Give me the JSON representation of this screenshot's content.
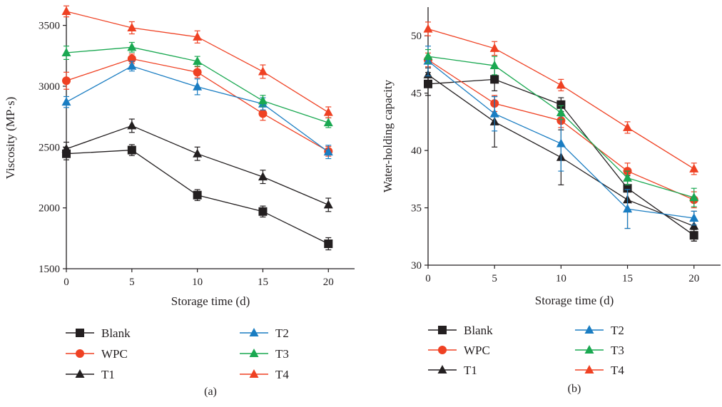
{
  "chart_data": [
    {
      "type": "line",
      "panel_label": "(a)",
      "xlabel": "Storage time (d)",
      "ylabel": "Viscosity (MP·s)",
      "x": [
        0,
        5,
        10,
        15,
        20
      ],
      "xticks": [
        0,
        5,
        10,
        15,
        20
      ],
      "xlim": [
        0,
        22
      ],
      "ylim": [
        1500,
        3650
      ],
      "yticks": [
        1500,
        2000,
        2500,
        3000,
        3500
      ],
      "grid": false,
      "legend_position": "bottom",
      "series": [
        {
          "name": "Blank",
          "color": "#231f20",
          "marker": "square",
          "values": [
            2445,
            2475,
            2105,
            1970,
            1705
          ],
          "errors": [
            50,
            45,
            45,
            45,
            50
          ]
        },
        {
          "name": "WPC",
          "color": "#ef4123",
          "marker": "circle",
          "values": [
            3045,
            3225,
            3115,
            2775,
            2465
          ],
          "errors": [
            70,
            40,
            45,
            55,
            40
          ]
        },
        {
          "name": "T1",
          "color": "#231f20",
          "marker": "triangle",
          "values": [
            2485,
            2675,
            2445,
            2255,
            2025
          ],
          "errors": [
            55,
            55,
            55,
            55,
            55
          ]
        },
        {
          "name": "T2",
          "color": "#1a7dc2",
          "marker": "triangle",
          "values": [
            2870,
            3165,
            2995,
            2855,
            2460
          ],
          "errors": [
            45,
            40,
            65,
            50,
            55
          ]
        },
        {
          "name": "T3",
          "color": "#1aa851",
          "marker": "triangle",
          "values": [
            3275,
            3320,
            3205,
            2880,
            2700
          ],
          "errors": [
            55,
            40,
            40,
            45,
            40
          ]
        },
        {
          "name": "T4",
          "color": "#ef4123",
          "marker": "triangle",
          "values": [
            3615,
            3480,
            3405,
            3120,
            2785
          ],
          "errors": [
            45,
            50,
            50,
            55,
            45
          ]
        }
      ]
    },
    {
      "type": "line",
      "panel_label": "(b)",
      "xlabel": "Storage time (d)",
      "ylabel": "Water-holding capacity",
      "x": [
        0,
        5,
        10,
        15,
        20
      ],
      "xticks": [
        0,
        5,
        10,
        15,
        20
      ],
      "xlim": [
        0,
        22
      ],
      "ylim": [
        30,
        52.5
      ],
      "yticks": [
        30,
        35,
        40,
        45,
        50
      ],
      "grid": false,
      "legend_position": "bottom",
      "series": [
        {
          "name": "Blank",
          "color": "#231f20",
          "marker": "square",
          "values": [
            45.8,
            46.2,
            44.0,
            36.7,
            32.6
          ],
          "errors": [
            1.0,
            1.0,
            0.6,
            1.1,
            0.5
          ]
        },
        {
          "name": "WPC",
          "color": "#ef4123",
          "marker": "circle",
          "values": [
            47.9,
            44.1,
            42.6,
            38.2,
            35.7
          ],
          "errors": [
            0.6,
            0.7,
            0.6,
            0.7,
            0.7
          ]
        },
        {
          "name": "T1",
          "color": "#231f20",
          "marker": "triangle",
          "values": [
            46.6,
            42.5,
            39.4,
            35.7,
            33.4
          ],
          "errors": [
            0.6,
            2.2,
            2.4,
            2.5,
            1.3
          ]
        },
        {
          "name": "T2",
          "color": "#1a7dc2",
          "marker": "triangle",
          "values": [
            47.8,
            43.2,
            40.6,
            34.9,
            34.1
          ],
          "errors": [
            1.3,
            1.5,
            2.4,
            1.7,
            0.6
          ]
        },
        {
          "name": "T3",
          "color": "#1aa851",
          "marker": "triangle",
          "values": [
            48.2,
            47.4,
            43.3,
            37.6,
            35.9
          ],
          "errors": [
            0.6,
            0.8,
            0.6,
            0.6,
            0.8
          ]
        },
        {
          "name": "T4",
          "color": "#ef4123",
          "marker": "triangle",
          "values": [
            50.6,
            48.9,
            45.7,
            42.0,
            38.4
          ],
          "errors": [
            0.6,
            0.6,
            0.5,
            0.5,
            0.5
          ]
        }
      ]
    }
  ]
}
